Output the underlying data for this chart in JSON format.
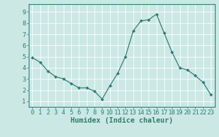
{
  "x": [
    0,
    1,
    2,
    3,
    4,
    5,
    6,
    7,
    8,
    9,
    10,
    11,
    12,
    13,
    14,
    15,
    16,
    17,
    18,
    19,
    20,
    21,
    22,
    23
  ],
  "y": [
    4.9,
    4.5,
    3.7,
    3.2,
    3.0,
    2.6,
    2.2,
    2.2,
    1.9,
    1.2,
    2.4,
    3.5,
    5.0,
    7.3,
    8.2,
    8.3,
    8.8,
    7.1,
    5.4,
    4.0,
    3.8,
    3.3,
    2.7,
    1.6
  ],
  "line_color": "#2e7d6e",
  "marker": "D",
  "marker_size": 2,
  "bg_color": "#cce8e4",
  "grid_color": "#ffffff",
  "xlabel": "Humidex (Indice chaleur)",
  "ylim": [
    0.5,
    9.7
  ],
  "xlim": [
    -0.5,
    23.5
  ],
  "yticks": [
    1,
    2,
    3,
    4,
    5,
    6,
    7,
    8,
    9
  ],
  "xticks": [
    0,
    1,
    2,
    3,
    4,
    5,
    6,
    7,
    8,
    9,
    10,
    11,
    12,
    13,
    14,
    15,
    16,
    17,
    18,
    19,
    20,
    21,
    22,
    23
  ],
  "axis_color": "#2e7d6e",
  "tick_color": "#2e7d6e",
  "label_color": "#2e7d6e",
  "font_size_ticks": 6.5,
  "font_size_label": 7.5
}
